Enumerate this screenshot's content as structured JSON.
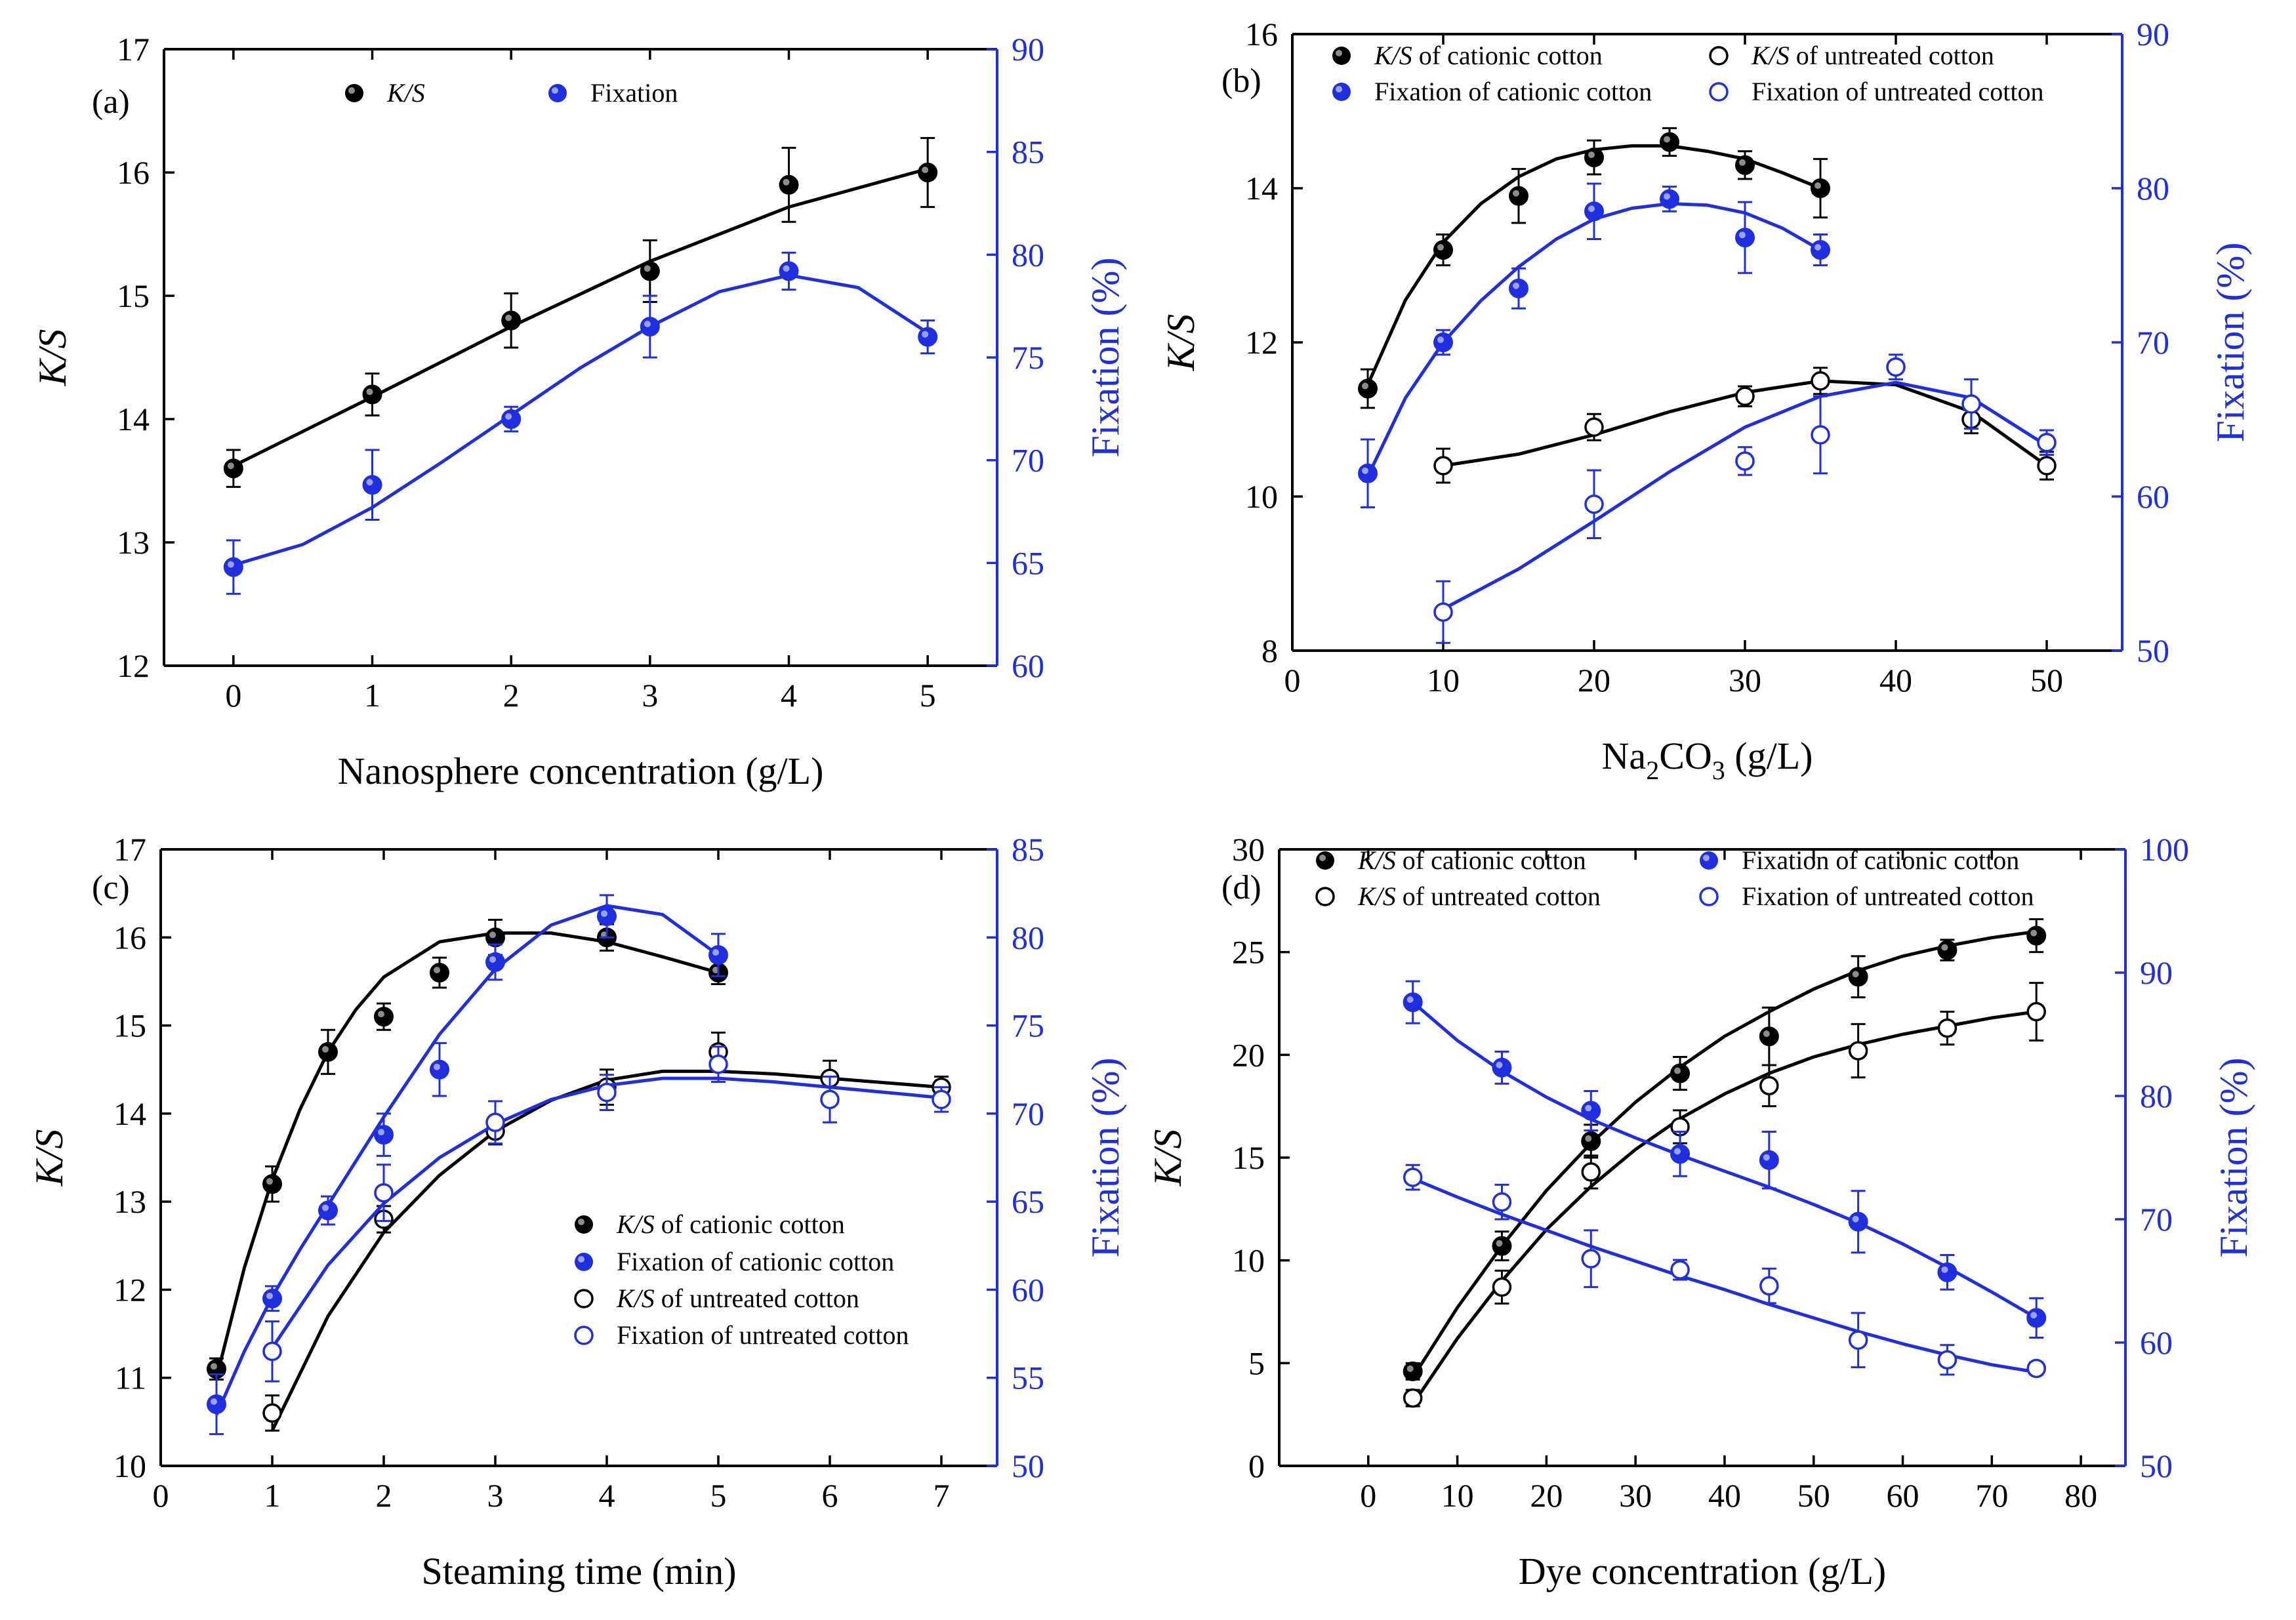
{
  "colors": {
    "black": "#000000",
    "blue": "#1f2fe0"
  },
  "chart_data": [
    {
      "type": "scatter",
      "panel_label": "(a)",
      "xlabel": "Nanosphere concentration (g/L)",
      "ylabel_left": "K/S",
      "ylabel_right": "Fixation (%)",
      "xlim": [
        -0.5,
        5.5
      ],
      "ylim_left": [
        12,
        17
      ],
      "ylim_right": [
        60,
        90
      ],
      "x_ticks": [
        "0",
        "1",
        "2",
        "3",
        "4",
        "5"
      ],
      "y_left_ticks": [
        "12",
        "13",
        "14",
        "15",
        "16",
        "17"
      ],
      "y_right_ticks": [
        "60",
        "65",
        "70",
        "75",
        "80",
        "85",
        "90"
      ],
      "series": [
        {
          "name": "K/S",
          "legend_italic": "K/S",
          "legend_rest": "",
          "axis": "left",
          "color": "black",
          "filled": true,
          "x": [
            0,
            1,
            2,
            3,
            4,
            5
          ],
          "y": [
            13.6,
            14.2,
            14.8,
            15.2,
            15.9,
            16.0
          ],
          "err": [
            0.15,
            0.17,
            0.22,
            0.25,
            0.3,
            0.28
          ],
          "fit_x": [
            0,
            1,
            2,
            3,
            4,
            5
          ],
          "fit_y": [
            13.62,
            14.18,
            14.75,
            15.28,
            15.72,
            16.03
          ]
        },
        {
          "name": "Fixation",
          "legend_italic": "",
          "legend_rest": "Fixation",
          "axis": "right",
          "color": "blue",
          "filled": true,
          "x": [
            0,
            1,
            2,
            3,
            4,
            5
          ],
          "y": [
            64.8,
            68.8,
            72.0,
            76.5,
            79.2,
            76.0
          ],
          "err": [
            1.3,
            1.7,
            0.6,
            1.5,
            0.9,
            0.8
          ],
          "fit_x": [
            0,
            0.5,
            1,
            1.5,
            2,
            2.5,
            3,
            3.5,
            4,
            4.5,
            5
          ],
          "fit_y": [
            64.9,
            65.9,
            67.7,
            69.9,
            72.2,
            74.5,
            76.5,
            78.2,
            79.0,
            78.4,
            76.2
          ]
        }
      ],
      "legend": {
        "placement": "top-left-horizontal"
      }
    },
    {
      "type": "scatter",
      "panel_label": "(b)",
      "xlabel_main": "Na",
      "xlabel_sub": "2",
      "xlabel_main2": "CO",
      "xlabel_sub2": "3",
      "xlabel_tail": " (g/L)",
      "ylabel_left": "K/S",
      "ylabel_right": "Fixation (%)",
      "xlim": [
        0,
        55
      ],
      "ylim_left": [
        8,
        16
      ],
      "ylim_right": [
        50,
        90
      ],
      "x_ticks": [
        "0",
        "10",
        "20",
        "30",
        "40",
        "50"
      ],
      "y_left_ticks": [
        "8",
        "10",
        "12",
        "14",
        "16"
      ],
      "y_right_ticks": [
        "50",
        "60",
        "70",
        "80",
        "90"
      ],
      "series": [
        {
          "name": "K/S of cationic cotton",
          "legend_italic": "K/S",
          "legend_rest": " of cationic cotton",
          "axis": "left",
          "color": "black",
          "filled": true,
          "x": [
            5,
            10,
            15,
            20,
            25,
            30,
            35
          ],
          "y": [
            11.4,
            13.2,
            13.9,
            14.4,
            14.6,
            14.3,
            14.0
          ],
          "err": [
            0.25,
            0.2,
            0.35,
            0.22,
            0.18,
            0.18,
            0.38
          ],
          "fit_x": [
            5,
            7.5,
            10,
            12.5,
            15,
            17.5,
            20,
            22.5,
            25,
            27.5,
            30,
            32.5,
            35
          ],
          "fit_y": [
            11.45,
            12.55,
            13.3,
            13.8,
            14.15,
            14.38,
            14.5,
            14.55,
            14.55,
            14.48,
            14.38,
            14.2,
            14.0
          ]
        },
        {
          "name": "K/S of untreated cotton",
          "legend_italic": "K/S",
          "legend_rest": " of untreated cotton",
          "axis": "left",
          "color": "black",
          "filled": false,
          "x": [
            10,
            20,
            30,
            35,
            45,
            50
          ],
          "y": [
            10.4,
            10.9,
            11.3,
            11.5,
            11.0,
            10.4
          ],
          "err": [
            0.22,
            0.17,
            0.13,
            0.17,
            0.18,
            0.18
          ],
          "fit_x": [
            10,
            15,
            20,
            25,
            30,
            35,
            40,
            45,
            50
          ],
          "fit_y": [
            10.4,
            10.55,
            10.8,
            11.1,
            11.35,
            11.5,
            11.45,
            11.1,
            10.4
          ]
        },
        {
          "name": "Fixation of cationic cotton",
          "legend_italic": "",
          "legend_rest": "Fixation of cationic cotton",
          "axis": "right",
          "color": "blue",
          "filled": true,
          "x": [
            5,
            10,
            15,
            20,
            25,
            30,
            35
          ],
          "y": [
            61.5,
            70.0,
            73.5,
            78.5,
            79.3,
            76.8,
            76.0
          ],
          "err": [
            2.2,
            0.8,
            1.3,
            1.8,
            0.8,
            2.3,
            1.0
          ],
          "fit_x": [
            5,
            7.5,
            10,
            12.5,
            15,
            17.5,
            20,
            22.5,
            25,
            27.5,
            30,
            32.5,
            35
          ],
          "fit_y": [
            61.3,
            66.4,
            70.0,
            72.7,
            74.9,
            76.7,
            78.0,
            78.7,
            79.0,
            78.9,
            78.4,
            77.4,
            76.0
          ]
        },
        {
          "name": "Fixation of untreated cotton",
          "legend_italic": "",
          "legend_rest": "Fixation of untreated cotton",
          "axis": "right",
          "color": "blue",
          "filled": false,
          "x": [
            10,
            20,
            30,
            35,
            40,
            45,
            50
          ],
          "y": [
            52.5,
            59.5,
            62.3,
            64.0,
            68.4,
            66.0,
            63.5
          ],
          "err": [
            2.0,
            2.2,
            0.9,
            2.5,
            0.8,
            1.6,
            0.8
          ],
          "fit_x": [
            10,
            15,
            20,
            25,
            30,
            35,
            40,
            45,
            50
          ],
          "fit_y": [
            52.7,
            55.3,
            58.4,
            61.6,
            64.5,
            66.5,
            67.4,
            66.4,
            63.3
          ]
        }
      ],
      "legend": {
        "placement": "top-two-columns"
      }
    },
    {
      "type": "scatter",
      "panel_label": "(c)",
      "xlabel": "Steaming time (min)",
      "ylabel_left": "K/S",
      "ylabel_right": "Fixation (%)",
      "xlim": [
        0,
        7.5
      ],
      "ylim_left": [
        10,
        17
      ],
      "ylim_right": [
        50,
        85
      ],
      "x_ticks": [
        "0",
        "1",
        "2",
        "3",
        "4",
        "5",
        "6",
        "7"
      ],
      "y_left_ticks": [
        "10",
        "11",
        "12",
        "13",
        "14",
        "15",
        "16",
        "17"
      ],
      "y_right_ticks": [
        "50",
        "55",
        "60",
        "65",
        "70",
        "75",
        "80",
        "85"
      ],
      "series": [
        {
          "name": "K/S of cationic cotton",
          "legend_italic": "K/S",
          "legend_rest": " of cationic cotton",
          "axis": "left",
          "color": "black",
          "filled": true,
          "x": [
            0.5,
            1,
            1.5,
            2,
            2.5,
            3,
            4,
            5
          ],
          "y": [
            11.1,
            13.2,
            14.7,
            15.1,
            15.6,
            16.0,
            16.0,
            15.6
          ],
          "err": [
            0.12,
            0.2,
            0.25,
            0.15,
            0.17,
            0.2,
            0.15,
            0.13
          ],
          "fit_x": [
            0.5,
            0.75,
            1,
            1.25,
            1.5,
            1.75,
            2,
            2.5,
            3,
            3.5,
            4,
            4.5,
            5
          ],
          "fit_y": [
            11.0,
            12.25,
            13.25,
            14.05,
            14.7,
            15.18,
            15.55,
            15.95,
            16.05,
            16.05,
            15.95,
            15.78,
            15.6
          ]
        },
        {
          "name": "Fixation of cationic cotton",
          "legend_italic": "",
          "legend_rest": "Fixation of cationic cotton",
          "axis": "right",
          "color": "blue",
          "filled": true,
          "x": [
            0.5,
            1,
            1.5,
            2,
            2.5,
            3,
            4,
            5
          ],
          "y": [
            53.5,
            59.5,
            64.5,
            68.8,
            72.5,
            78.6,
            81.2,
            79.0
          ],
          "err": [
            1.7,
            0.7,
            0.8,
            1.2,
            1.5,
            1.0,
            1.2,
            1.2
          ],
          "fit_x": [
            0.5,
            0.75,
            1,
            1.25,
            1.5,
            1.75,
            2,
            2.5,
            3,
            3.5,
            4,
            4.5,
            5
          ],
          "fit_y": [
            52.9,
            56.5,
            59.6,
            62.3,
            64.8,
            67.3,
            69.8,
            74.5,
            78.2,
            80.7,
            81.8,
            81.3,
            79.0
          ]
        },
        {
          "name": "K/S of untreated cotton",
          "legend_italic": "K/S",
          "legend_rest": " of untreated cotton",
          "axis": "left",
          "color": "black",
          "filled": false,
          "x": [
            1,
            2,
            3,
            4,
            5,
            6,
            7
          ],
          "y": [
            10.6,
            12.8,
            13.8,
            14.3,
            14.7,
            14.4,
            14.3
          ],
          "err": [
            0.2,
            0.15,
            0.15,
            0.2,
            0.22,
            0.2,
            0.12
          ],
          "fit_x": [
            1,
            1.5,
            2,
            2.5,
            3,
            3.5,
            4,
            4.5,
            5,
            5.5,
            6,
            6.5,
            7
          ],
          "fit_y": [
            10.4,
            11.7,
            12.65,
            13.3,
            13.8,
            14.15,
            14.38,
            14.48,
            14.48,
            14.45,
            14.4,
            14.35,
            14.3
          ]
        },
        {
          "name": "Fixation of untreated cotton",
          "legend_italic": "",
          "legend_rest": "Fixation of untreated cotton",
          "axis": "right",
          "color": "blue",
          "filled": false,
          "x": [
            1,
            2,
            3,
            4,
            5,
            6,
            7
          ],
          "y": [
            56.5,
            65.5,
            69.5,
            71.2,
            72.8,
            70.8,
            70.8
          ],
          "err": [
            1.7,
            1.6,
            1.2,
            1.0,
            1.0,
            1.3,
            0.7
          ],
          "fit_x": [
            1,
            1.5,
            2,
            2.5,
            3,
            3.5,
            4,
            4.5,
            5,
            5.5,
            6,
            6.5,
            7
          ],
          "fit_y": [
            56.7,
            61.4,
            64.9,
            67.5,
            69.4,
            70.8,
            71.6,
            72.0,
            72.0,
            71.8,
            71.5,
            71.2,
            70.9
          ]
        }
      ],
      "legend": {
        "placement": "center-right-stacked"
      }
    },
    {
      "type": "scatter",
      "panel_label": "(d)",
      "xlabel": "Dye concentration (g/L)",
      "ylabel_left": "K/S",
      "ylabel_right": "Fixation (%)",
      "xlim": [
        -10,
        85
      ],
      "ylim_left": [
        0,
        30
      ],
      "ylim_right": [
        50,
        100
      ],
      "x_ticks": [
        "0",
        "10",
        "20",
        "30",
        "40",
        "50",
        "60",
        "70",
        "80"
      ],
      "y_left_ticks": [
        "0",
        "5",
        "10",
        "15",
        "20",
        "25",
        "30"
      ],
      "y_right_ticks": [
        "50",
        "60",
        "70",
        "80",
        "90",
        "100"
      ],
      "series": [
        {
          "name": "K/S of cationic cotton",
          "legend_italic": "K/S",
          "legend_rest": " of cationic cotton",
          "axis": "left",
          "color": "black",
          "filled": true,
          "x": [
            5,
            15,
            25,
            35,
            45,
            55,
            65,
            75
          ],
          "y": [
            4.6,
            10.7,
            15.8,
            19.1,
            20.9,
            23.8,
            25.1,
            25.8
          ],
          "err": [
            0.4,
            0.7,
            0.8,
            0.8,
            1.4,
            1.0,
            0.5,
            0.8
          ],
          "fit_x": [
            5,
            10,
            15,
            20,
            25,
            30,
            35,
            40,
            45,
            50,
            55,
            60,
            65,
            70,
            75
          ],
          "fit_y": [
            4.3,
            7.7,
            10.7,
            13.4,
            15.7,
            17.7,
            19.4,
            20.9,
            22.1,
            23.2,
            24.1,
            24.8,
            25.3,
            25.7,
            26.0
          ]
        },
        {
          "name": "K/S of untreated cotton",
          "legend_italic": "K/S",
          "legend_rest": " of untreated cotton",
          "axis": "left",
          "color": "black",
          "filled": false,
          "x": [
            5,
            15,
            25,
            35,
            45,
            55,
            65,
            75
          ],
          "y": [
            3.3,
            8.7,
            14.3,
            16.5,
            18.5,
            20.2,
            21.3,
            22.1
          ],
          "err": [
            0.4,
            0.8,
            0.8,
            0.8,
            1.0,
            1.3,
            0.8,
            1.4
          ],
          "fit_x": [
            5,
            10,
            15,
            20,
            25,
            30,
            35,
            40,
            45,
            50,
            55,
            60,
            65,
            70,
            75
          ],
          "fit_y": [
            3.0,
            6.2,
            9.0,
            11.5,
            13.6,
            15.4,
            16.9,
            18.1,
            19.1,
            19.9,
            20.5,
            21.0,
            21.4,
            21.8,
            22.1
          ]
        },
        {
          "name": "Fixation of cationic cotton",
          "legend_italic": "",
          "legend_rest": "Fixation of cationic cotton",
          "axis": "right",
          "color": "blue",
          "filled": true,
          "x": [
            5,
            15,
            25,
            35,
            45,
            55,
            65,
            75
          ],
          "y": [
            87.6,
            82.3,
            78.8,
            75.3,
            74.8,
            69.8,
            65.7,
            62.0
          ],
          "err": [
            1.7,
            1.3,
            1.6,
            1.8,
            2.3,
            2.5,
            1.4,
            1.6
          ],
          "fit_x": [
            5,
            10,
            15,
            20,
            25,
            30,
            35,
            40,
            45,
            50,
            55,
            60,
            65,
            70,
            75
          ],
          "fit_y": [
            87.6,
            84.5,
            82.0,
            79.9,
            78.1,
            76.6,
            75.2,
            73.9,
            72.6,
            71.2,
            69.7,
            68.0,
            66.1,
            64.1,
            62.0
          ]
        },
        {
          "name": "Fixation of untreated cotton",
          "legend_italic": "",
          "legend_rest": "Fixation of untreated cotton",
          "axis": "right",
          "color": "blue",
          "filled": false,
          "x": [
            5,
            15,
            25,
            35,
            45,
            55,
            65,
            75
          ],
          "y": [
            73.4,
            71.4,
            66.8,
            65.9,
            64.6,
            60.2,
            58.6,
            57.9
          ],
          "err": [
            1.0,
            1.4,
            2.3,
            0.8,
            1.4,
            2.2,
            1.2,
            0.5
          ],
          "fit_x": [
            5,
            10,
            15,
            20,
            25,
            30,
            35,
            40,
            45,
            50,
            55,
            60,
            65,
            70,
            75
          ],
          "fit_y": [
            73.3,
            71.8,
            70.4,
            69.1,
            67.8,
            66.6,
            65.4,
            64.3,
            63.1,
            62.0,
            60.9,
            59.9,
            59.0,
            58.2,
            57.6
          ]
        }
      ],
      "legend": {
        "placement": "top-two-columns"
      }
    }
  ]
}
